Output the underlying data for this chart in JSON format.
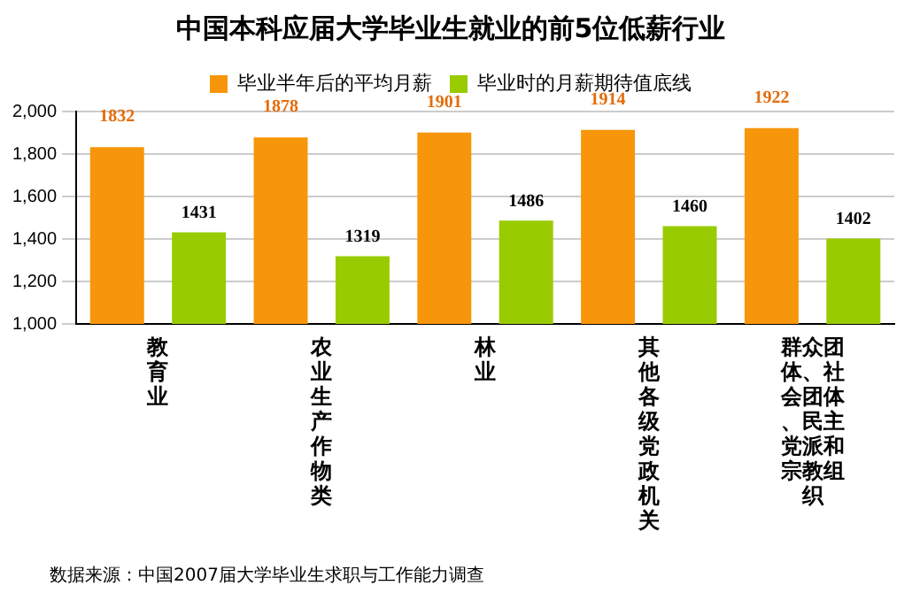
{
  "chart_data": {
    "type": "bar",
    "title": "中国本科应届大学毕业生就业的前5位低薪行业",
    "categories": [
      "教育业",
      "农业生产作物类",
      "林业",
      "其他各级党政机关",
      "群众团体、社会团体、民主党派和宗教组织"
    ],
    "series": [
      {
        "name": "毕业半年后的平均月薪",
        "color": "#f7960a",
        "values": [
          1832,
          1878,
          1901,
          1914,
          1922
        ]
      },
      {
        "name": "毕业时的月薪期待值底线",
        "color": "#99cc00",
        "values": [
          1431,
          1319,
          1486,
          1460,
          1402
        ]
      }
    ],
    "ylim": [
      1000,
      2000
    ],
    "yticks": [
      {
        "value": 1000,
        "label": "1,000"
      },
      {
        "value": 1200,
        "label": "1,200"
      },
      {
        "value": 1400,
        "label": "1,400"
      },
      {
        "value": 1600,
        "label": "1,600"
      },
      {
        "value": 1800,
        "label": "1,800"
      },
      {
        "value": 2000,
        "label": "2,000"
      }
    ],
    "grid": "y",
    "legend": "top",
    "data_labels": true,
    "annotations": [
      "数据来源：中国2007届大学毕业生求职与工作能力调查"
    ]
  }
}
